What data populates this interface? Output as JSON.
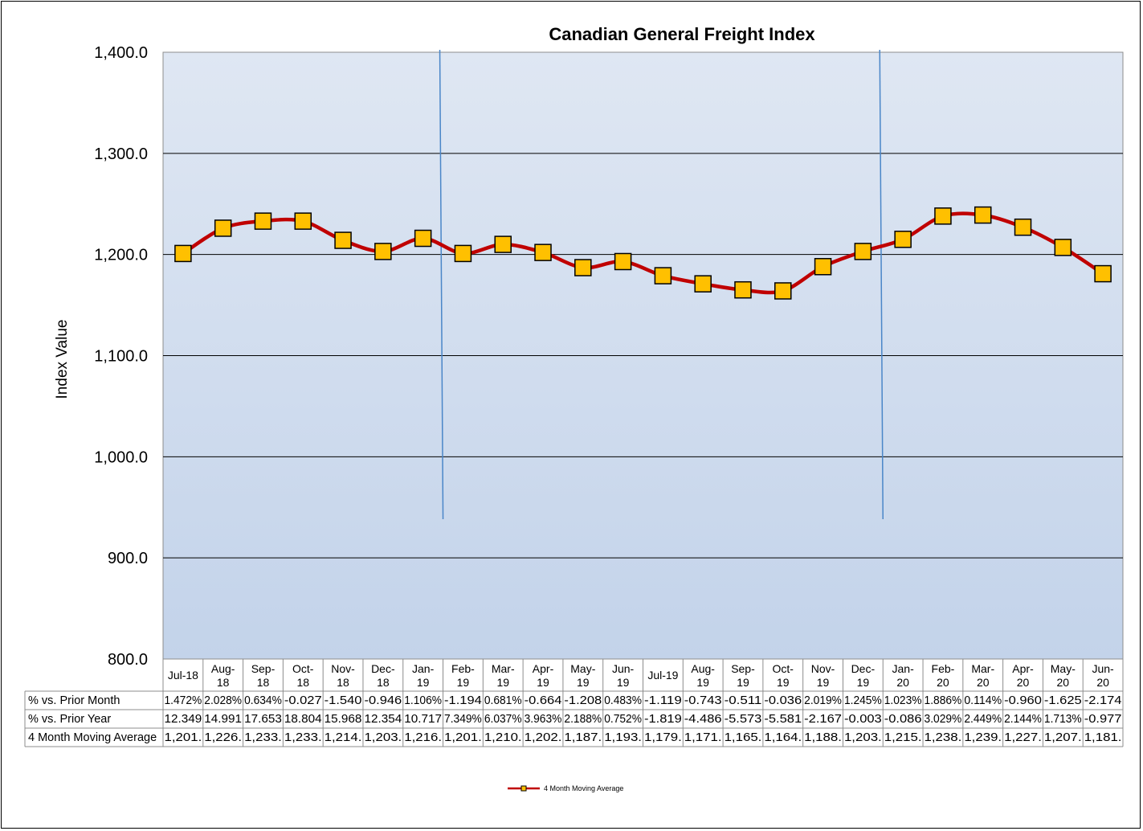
{
  "chart_data": {
    "type": "line",
    "title": "Canadian General Freight Index",
    "ylabel": "Index Value",
    "ylim": [
      800,
      1400
    ],
    "y_ticks": [
      "1,400.0",
      "1,300.0",
      "1,200.0",
      "1,100.0",
      "1,000.0",
      "900.0",
      "800.0"
    ],
    "y_tick_values": [
      1400,
      1300,
      1200,
      1100,
      1000,
      900,
      800
    ],
    "grid": true,
    "legend_position": "bottom",
    "categories": [
      [
        "Jul-18"
      ],
      [
        "Aug-",
        "18"
      ],
      [
        "Sep-",
        "18"
      ],
      [
        "Oct-",
        "18"
      ],
      [
        "Nov-",
        "18"
      ],
      [
        "Dec-",
        "18"
      ],
      [
        "Jan-",
        "19"
      ],
      [
        "Feb-",
        "19"
      ],
      [
        "Mar-",
        "19"
      ],
      [
        "Apr-",
        "19"
      ],
      [
        "May-",
        "19"
      ],
      [
        "Jun-",
        "19"
      ],
      [
        "Jul-19"
      ],
      [
        "Aug-",
        "19"
      ],
      [
        "Sep-",
        "19"
      ],
      [
        "Oct-",
        "19"
      ],
      [
        "Nov-",
        "19"
      ],
      [
        "Dec-",
        "19"
      ],
      [
        "Jan-",
        "20"
      ],
      [
        "Feb-",
        "20"
      ],
      [
        "Mar-",
        "20"
      ],
      [
        "Apr-",
        "20"
      ],
      [
        "May-",
        "20"
      ],
      [
        "Jun-",
        "20"
      ]
    ],
    "series": [
      {
        "name": "4 Month Moving Average",
        "color": "#c00000",
        "marker_color": "#ffc000",
        "values": [
          1201,
          1226,
          1233,
          1233,
          1214,
          1203,
          1216,
          1201,
          1210,
          1202,
          1187,
          1193,
          1179,
          1171,
          1165,
          1164,
          1188,
          1203,
          1215,
          1238,
          1239,
          1227,
          1207,
          1181
        ]
      }
    ],
    "vertical_lines_after": [
      "Jan-19",
      "Dec-19"
    ],
    "vertical_line_color": "#4a86c8",
    "plot_gradient": [
      "#dfe7f3",
      "#c3d3ea"
    ],
    "table": {
      "rows": [
        {
          "label": "% vs. Prior Month",
          "cells": [
            "1.472%",
            "2.028%",
            "0.634%",
            "-0.027",
            "-1.540",
            "-0.946",
            "1.106%",
            "-1.194",
            "0.681%",
            "-0.664",
            "-1.208",
            "0.483%",
            "-1.119",
            "-0.743",
            "-0.511",
            "-0.036",
            "2.019%",
            "1.245%",
            "1.023%",
            "1.886%",
            "0.114%",
            "-0.960",
            "-1.625",
            "-2.174"
          ]
        },
        {
          "label": "% vs. Prior Year",
          "cells": [
            "12.349",
            "14.991",
            "17.653",
            "18.804",
            "15.968",
            "12.354",
            "10.717",
            "7.349%",
            "6.037%",
            "3.963%",
            "2.188%",
            "0.752%",
            "-1.819",
            "-4.486",
            "-5.573",
            "-5.581",
            "-2.167",
            "-0.003",
            "-0.086",
            "3.029%",
            "2.449%",
            "2.144%",
            "1.713%",
            "-0.977"
          ]
        },
        {
          "label": "4 Month Moving Average",
          "cells": [
            "1,201.",
            "1,226.",
            "1,233.",
            "1,233.",
            "1,214.",
            "1,203.",
            "1,216.",
            "1,201.",
            "1,210.",
            "1,202.",
            "1,187.",
            "1,193.",
            "1,179.",
            "1,171.",
            "1,165.",
            "1,164.",
            "1,188.",
            "1,203.",
            "1,215.",
            "1,238.",
            "1,239.",
            "1,227.",
            "1,207.",
            "1,181."
          ]
        }
      ]
    }
  }
}
